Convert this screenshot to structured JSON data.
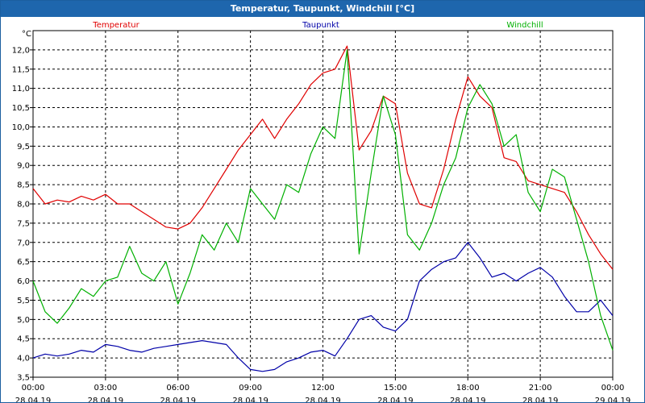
{
  "window": {
    "title": "Temperatur, Taupunkt, Windchill [°C]"
  },
  "chart_data": {
    "type": "line",
    "title": "Temperatur, Taupunkt, Windchill [°C]",
    "y_unit": "°C",
    "ylim": [
      3.5,
      12.5
    ],
    "y_ticks": [
      "3.5",
      "4.0",
      "4.5",
      "5.0",
      "5.5",
      "6.0",
      "6.5",
      "7.0",
      "7.5",
      "8.0",
      "8.5",
      "9.0",
      "9.5",
      "10.0",
      "10.5",
      "11.0",
      "11.5",
      "12.0"
    ],
    "y_tick_labels": [
      "3,5",
      "4,0",
      "4,5",
      "5,0",
      "5,5",
      "6,0",
      "6,5",
      "7,0",
      "7,5",
      "8,0",
      "8,5",
      "9,0",
      "9,5",
      "10,0",
      "10,5",
      "11,0",
      "11,5",
      "12,0"
    ],
    "xlim": [
      0,
      24
    ],
    "x_ticks": [
      {
        "time": "00:00",
        "date": "28.04.19"
      },
      {
        "time": "03:00",
        "date": "28.04.19"
      },
      {
        "time": "06:00",
        "date": "28.04.19"
      },
      {
        "time": "09:00",
        "date": "28.04.19"
      },
      {
        "time": "12:00",
        "date": "28.04.19"
      },
      {
        "time": "15:00",
        "date": "28.04.19"
      },
      {
        "time": "18:00",
        "date": "28.04.19"
      },
      {
        "time": "21:00",
        "date": "28.04.19"
      },
      {
        "time": "00:00",
        "date": "29.04.19"
      }
    ],
    "grid": true,
    "legend": "top",
    "series": [
      {
        "name": "Temperatur",
        "color": "#e00000",
        "x": [
          0,
          0.5,
          1,
          1.5,
          2,
          2.5,
          3,
          3.5,
          4,
          4.5,
          5,
          5.5,
          6,
          6.5,
          7,
          7.5,
          8,
          8.5,
          9,
          9.5,
          10,
          10.5,
          11,
          11.5,
          12,
          12.5,
          13,
          13.5,
          14,
          14.5,
          15,
          15.5,
          16,
          16.5,
          17,
          17.5,
          18,
          18.5,
          19,
          19.5,
          20,
          20.5,
          21,
          21.5,
          22,
          22.5,
          23,
          23.5,
          24
        ],
        "values": [
          8.4,
          8.0,
          8.1,
          8.05,
          8.2,
          8.1,
          8.25,
          8.0,
          8.0,
          7.8,
          7.6,
          7.4,
          7.35,
          7.5,
          7.9,
          8.4,
          8.9,
          9.4,
          9.8,
          10.2,
          9.7,
          10.2,
          10.6,
          11.1,
          11.4,
          11.5,
          12.1,
          9.4,
          9.9,
          10.8,
          10.6,
          8.8,
          8.0,
          7.9,
          8.9,
          10.2,
          11.3,
          10.8,
          10.5,
          9.2,
          9.1,
          8.6,
          8.5,
          8.4,
          8.3,
          7.8,
          7.2,
          6.7,
          6.3
        ]
      },
      {
        "name": "Taupunkt",
        "color": "#0000a8",
        "x": [
          0,
          0.5,
          1,
          1.5,
          2,
          2.5,
          3,
          3.5,
          4,
          4.5,
          5,
          5.5,
          6,
          6.5,
          7,
          7.5,
          8,
          8.5,
          9,
          9.5,
          10,
          10.5,
          11,
          11.5,
          12,
          12.5,
          13,
          13.5,
          14,
          14.5,
          15,
          15.5,
          16,
          16.5,
          17,
          17.5,
          18,
          18.5,
          19,
          19.5,
          20,
          20.5,
          21,
          21.5,
          22,
          22.5,
          23,
          23.5,
          24
        ],
        "values": [
          4.0,
          4.1,
          4.05,
          4.1,
          4.2,
          4.15,
          4.35,
          4.3,
          4.2,
          4.15,
          4.25,
          4.3,
          4.35,
          4.4,
          4.45,
          4.4,
          4.35,
          4.0,
          3.7,
          3.65,
          3.7,
          3.9,
          4.0,
          4.15,
          4.2,
          4.05,
          4.5,
          5.0,
          5.1,
          4.8,
          4.7,
          5.0,
          6.0,
          6.3,
          6.5,
          6.6,
          7.0,
          6.6,
          6.1,
          6.2,
          6.0,
          6.2,
          6.35,
          6.1,
          5.6,
          5.2,
          5.2,
          5.5,
          5.1
        ]
      },
      {
        "name": "Windchill",
        "color": "#00b000",
        "x": [
          0,
          0.5,
          1,
          1.5,
          2,
          2.5,
          3,
          3.5,
          4,
          4.5,
          5,
          5.5,
          6,
          6.5,
          7,
          7.5,
          8,
          8.5,
          9,
          9.5,
          10,
          10.5,
          11,
          11.5,
          12,
          12.5,
          13,
          13.5,
          14,
          14.5,
          15,
          15.5,
          16,
          16.5,
          17,
          17.5,
          18,
          18.5,
          19,
          19.5,
          20,
          20.5,
          21,
          21.5,
          22,
          22.5,
          23,
          23.5,
          24
        ],
        "values": [
          6.0,
          5.2,
          4.9,
          5.3,
          5.8,
          5.6,
          6.0,
          6.1,
          6.9,
          6.2,
          6.0,
          6.5,
          5.4,
          6.2,
          7.2,
          6.8,
          7.5,
          7.0,
          8.4,
          8.0,
          7.6,
          8.5,
          8.3,
          9.3,
          10.0,
          9.7,
          12.0,
          6.7,
          8.8,
          10.8,
          9.8,
          7.2,
          6.8,
          7.5,
          8.5,
          9.2,
          10.5,
          11.1,
          10.6,
          9.5,
          9.8,
          8.3,
          7.8,
          8.9,
          8.7,
          7.6,
          6.5,
          5.1,
          4.2
        ]
      }
    ]
  }
}
